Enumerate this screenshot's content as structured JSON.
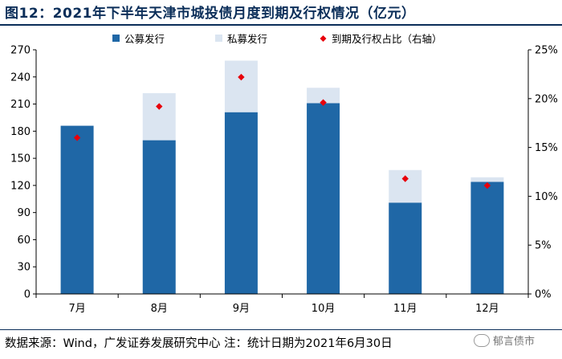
{
  "title": "图12：2021年下半年天津市城投债月度到期及行权情况（亿元）",
  "source": "数据来源：Wind，广发证券发展研究中心  注：统计日期为2021年6月30日",
  "watermark": "郁言债市",
  "colors": {
    "public": "#1f67a6",
    "private": "#dbe5f1",
    "ratio": "#e8000b",
    "axis": "#000000",
    "title": "#0b2e59"
  },
  "chart_data": {
    "type": "bar",
    "stacked": true,
    "categories": [
      "7月",
      "8月",
      "9月",
      "10月",
      "11月",
      "12月"
    ],
    "series": [
      {
        "name": "公募发行",
        "values": [
          186,
          170,
          201,
          211,
          101,
          124
        ]
      },
      {
        "name": "私募发行",
        "values": [
          0,
          52,
          57,
          17,
          36,
          5
        ]
      },
      {
        "name": "到期及行权占比（右轴）",
        "axis": "right",
        "unit": "%",
        "values": [
          16.0,
          19.2,
          22.2,
          19.6,
          11.8,
          11.1
        ]
      }
    ],
    "ylim_left": [
      0,
      270
    ],
    "yticks_left": [
      "0",
      "30",
      "60",
      "90",
      "120",
      "150",
      "180",
      "210",
      "240",
      "270"
    ],
    "ylim_right": [
      0,
      25
    ],
    "yticks_right": [
      "0%",
      "5%",
      "10%",
      "15%",
      "20%",
      "25%"
    ],
    "legend_position": "top",
    "grid": false
  }
}
